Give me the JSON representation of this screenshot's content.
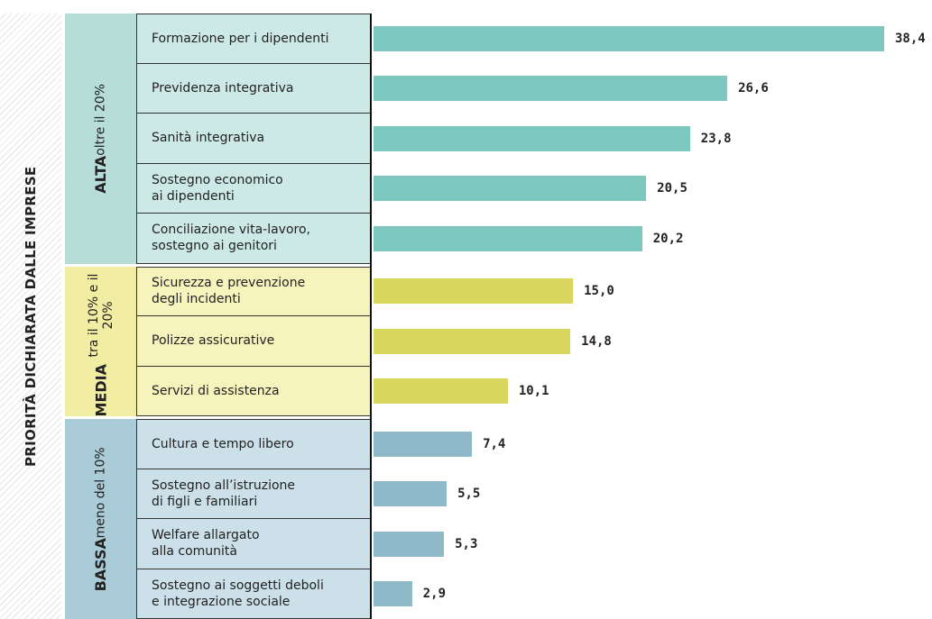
{
  "chart_data": {
    "type": "bar",
    "orientation": "horizontal",
    "y_label": "PRIORITÀ DICHIARATA DALLE IMPRESE",
    "groups": [
      {
        "name": "ALTA",
        "note": "oltre il 20%",
        "color": "#7cc7be",
        "background": "#cde9e6",
        "label_background": "#b6ddd8",
        "categories": [
          "Formazione per i dipendenti",
          "Previdenza integrativa",
          "Sanità integrativa",
          "Sostegno economico\nai dipendenti",
          "Conciliazione vita-lavoro,\nsostegno ai genitori"
        ],
        "values": [
          38.4,
          26.6,
          23.8,
          20.5,
          20.2
        ],
        "value_labels": [
          "38,4",
          "26,6",
          "23,8",
          "20,5",
          "20,2"
        ]
      },
      {
        "name": "MEDIA",
        "note": "tra il 10% e il 20%",
        "color": "#d8d65c",
        "background": "#f6f3bd",
        "label_background": "#f1eda3",
        "categories": [
          "Sicurezza e prevenzione\ndegli incidenti",
          "Polizze assicurative",
          "Servizi di assistenza"
        ],
        "values": [
          15.0,
          14.8,
          10.1
        ],
        "value_labels": [
          "15,0",
          "14,8",
          "10,1"
        ]
      },
      {
        "name": "BASSA",
        "note": "meno del 10%",
        "color": "#8fb8c9",
        "background": "#cbe0e8",
        "label_background": "#aacbd8",
        "categories": [
          "Cultura e tempo libero",
          "Sostegno all’istruzione\ndi figli e familiari",
          "Welfare allargato\nalla comunità",
          "Sostegno ai soggetti deboli\ne integrazione sociale"
        ],
        "values": [
          7.4,
          5.5,
          5.3,
          2.9
        ],
        "value_labels": [
          "7,4",
          "5,5",
          "5,3",
          "2,9"
        ]
      }
    ]
  }
}
